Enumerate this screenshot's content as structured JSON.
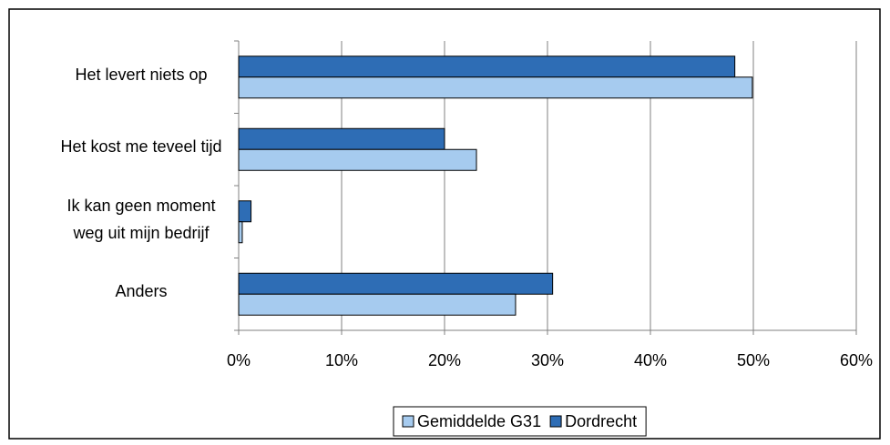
{
  "chart_data": {
    "type": "bar",
    "orientation": "horizontal",
    "categories": [
      "Het levert niets op",
      "Het kost me teveel tijd",
      "Ik kan geen moment weg uit mijn bedrijf",
      "Anders"
    ],
    "series": [
      {
        "name": "Gemiddelde G31",
        "color": "#a6cbef",
        "values": [
          49.9,
          23.1,
          0.35,
          26.9
        ]
      },
      {
        "name": "Dordrecht",
        "color": "#2e6db5",
        "values": [
          48.2,
          20.0,
          1.2,
          30.5
        ]
      }
    ],
    "xlim": [
      0,
      60
    ],
    "xticks": [
      {
        "value": 0,
        "label": "0%"
      },
      {
        "value": 10,
        "label": "10%"
      },
      {
        "value": 20,
        "label": "20%"
      },
      {
        "value": 30,
        "label": "30%"
      },
      {
        "value": 40,
        "label": "40%"
      },
      {
        "value": 50,
        "label": "50%"
      },
      {
        "value": 60,
        "label": "60%"
      }
    ],
    "grid": true,
    "legend": "bottom"
  }
}
